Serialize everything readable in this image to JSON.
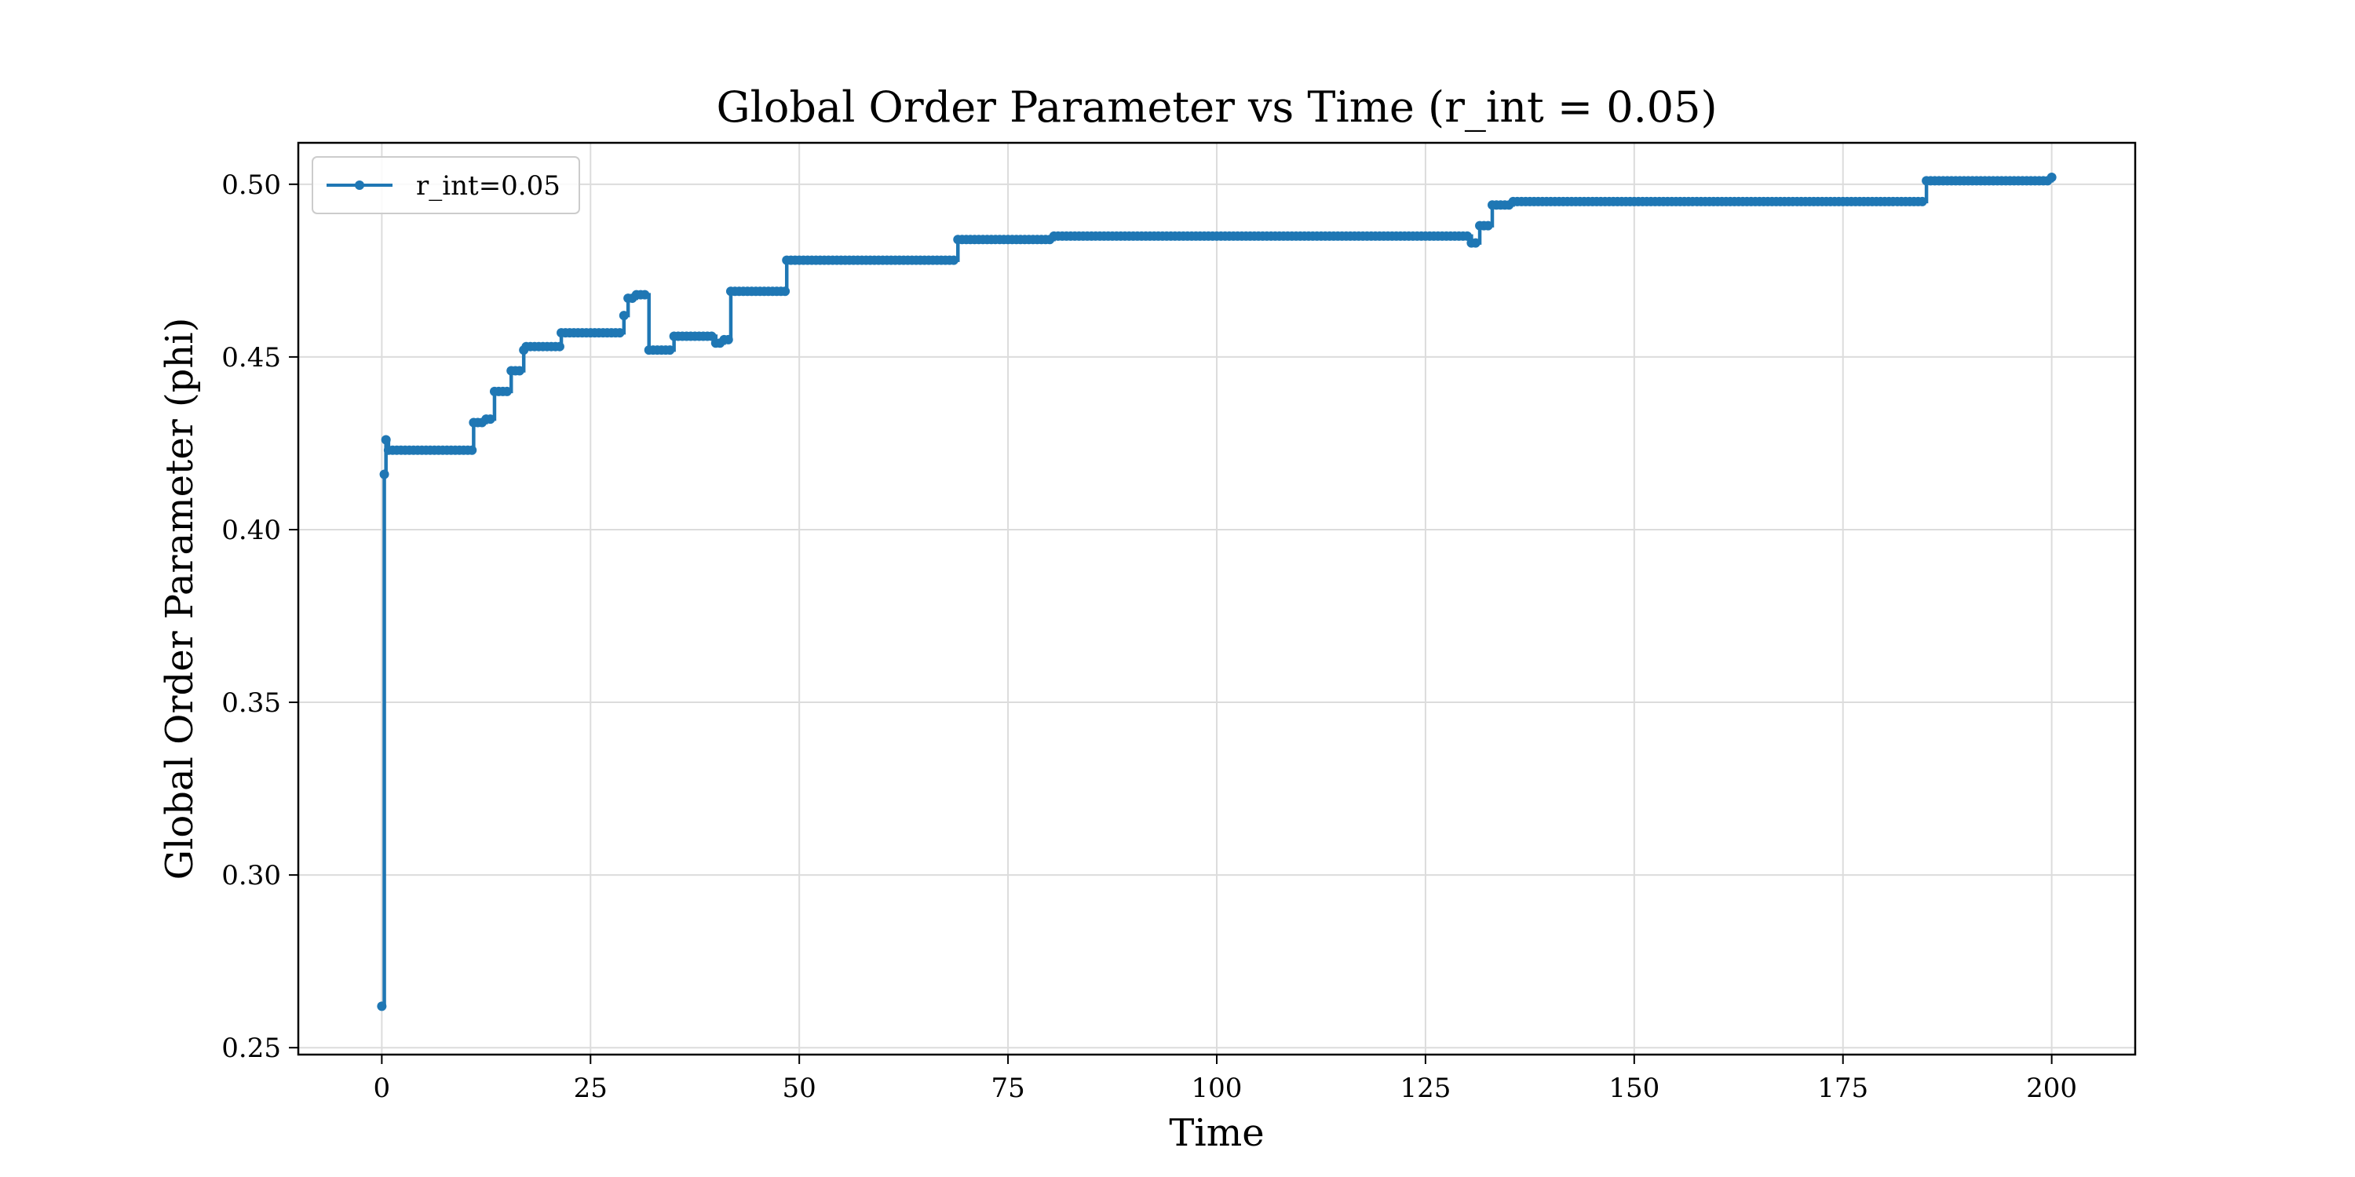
{
  "chart_data": {
    "type": "line",
    "title": "Global Order Parameter vs Time (r_int = 0.05)",
    "xlabel": "Time",
    "ylabel": "Global Order Parameter (phi)",
    "xlim": [
      -10,
      210
    ],
    "ylim": [
      0.248,
      0.512
    ],
    "xticks": [
      0,
      25,
      50,
      75,
      100,
      125,
      150,
      175,
      200
    ],
    "xtick_labels": [
      "0",
      "25",
      "50",
      "75",
      "100",
      "125",
      "150",
      "175",
      "200"
    ],
    "yticks": [
      0.25,
      0.3,
      0.35,
      0.4,
      0.45,
      0.5
    ],
    "ytick_labels": [
      "0.25",
      "0.30",
      "0.35",
      "0.40",
      "0.45",
      "0.50"
    ],
    "grid": true,
    "legend_position": "upper-left",
    "color": "#1f77b4",
    "series": [
      {
        "name": "r_int=0.05",
        "marker": "circle",
        "steps": [
          [
            0.0,
            0.262
          ],
          [
            0.3,
            0.416
          ],
          [
            0.5,
            0.426
          ],
          [
            0.8,
            0.423
          ],
          [
            11.0,
            0.431
          ],
          [
            12.5,
            0.432
          ],
          [
            13.5,
            0.44
          ],
          [
            15.5,
            0.446
          ],
          [
            17.0,
            0.452
          ],
          [
            17.3,
            0.453
          ],
          [
            21.5,
            0.457
          ],
          [
            29.0,
            0.462
          ],
          [
            29.5,
            0.467
          ],
          [
            30.5,
            0.468
          ],
          [
            32.0,
            0.452
          ],
          [
            35.0,
            0.456
          ],
          [
            40.0,
            0.454
          ],
          [
            41.0,
            0.455
          ],
          [
            41.8,
            0.469
          ],
          [
            48.5,
            0.478
          ],
          [
            69.0,
            0.484
          ],
          [
            80.5,
            0.485
          ],
          [
            121.0,
            0.485
          ],
          [
            130.5,
            0.483
          ],
          [
            131.5,
            0.488
          ],
          [
            133.0,
            0.494
          ],
          [
            135.5,
            0.495
          ],
          [
            185.0,
            0.501
          ],
          [
            186.0,
            0.501
          ],
          [
            200.0,
            0.502
          ]
        ]
      }
    ]
  }
}
